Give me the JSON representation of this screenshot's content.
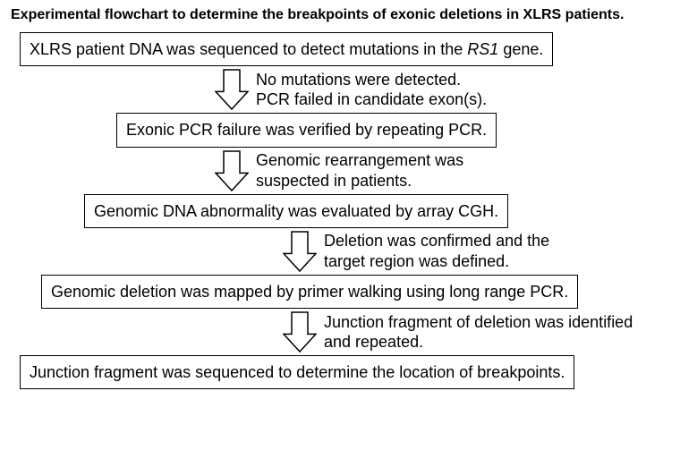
{
  "title": "Experimental flowchart to determine the breakpoints of exonic deletions in XLRS patients.",
  "steps": [
    {
      "box": "XLRS patient DNA was sequenced to detect mutations in the RS1 gene.",
      "box_html": "XLRS patient DNA was sequenced to detect mutations in the <i>RS1</i> gene."
    },
    {
      "arrow_label": "No mutations were detected.\nPCR failed in candidate exon(s).",
      "box": "Exonic PCR failure was verified by repeating PCR."
    },
    {
      "arrow_label": "Genomic rearrangement was\nsuspected in patients.",
      "box": "Genomic DNA abnormality was evaluated by array CGH."
    },
    {
      "arrow_label": "Deletion was confirmed and the\ntarget region was defined.",
      "box": "Genomic deletion was mapped by primer walking using long range PCR."
    },
    {
      "arrow_label": "Junction fragment of deletion was identified\nand repeated.",
      "box": "Junction fragment was sequenced to determine the location of breakpoints."
    }
  ],
  "style": {
    "font_family": "Arial, Helvetica, sans-serif",
    "title_fontsize": 16,
    "title_weight": "bold",
    "box_fontsize": 18,
    "label_fontsize": 18,
    "box_border_color": "#000000",
    "box_border_width": 1.5,
    "background": "#ffffff",
    "arrow": {
      "width": 38,
      "height": 48,
      "shaft_width": 18,
      "head_width": 36,
      "stroke": "#000000",
      "fill": "#ffffff",
      "stroke_width": 1.5
    },
    "layout": {
      "arrow_left_offsets": [
        230,
        230,
        230,
        306,
        306
      ],
      "box_left_offsets": [
        12,
        120,
        84,
        36,
        12
      ]
    }
  }
}
